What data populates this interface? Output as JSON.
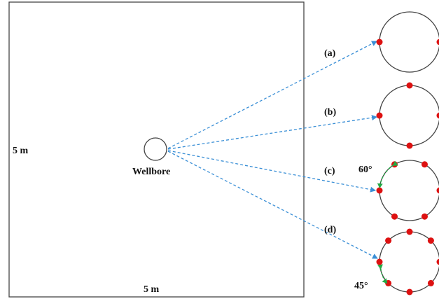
{
  "labels": {
    "domain_height": "5 m",
    "domain_width": "5 m",
    "wellbore": "Wellbore",
    "case_a": "(a)",
    "case_b": "(b)",
    "case_c": "(c)",
    "case_d": "(d)",
    "angle_c": "60°",
    "angle_d": "45°"
  },
  "perforation_counts": {
    "a": 2,
    "b": 4,
    "c": 6,
    "d": 8
  },
  "colors": {
    "outline": "#444444",
    "arrow": "#3a8fd6",
    "perforation": "#dd1111",
    "angle_arc": "#22aa44"
  }
}
